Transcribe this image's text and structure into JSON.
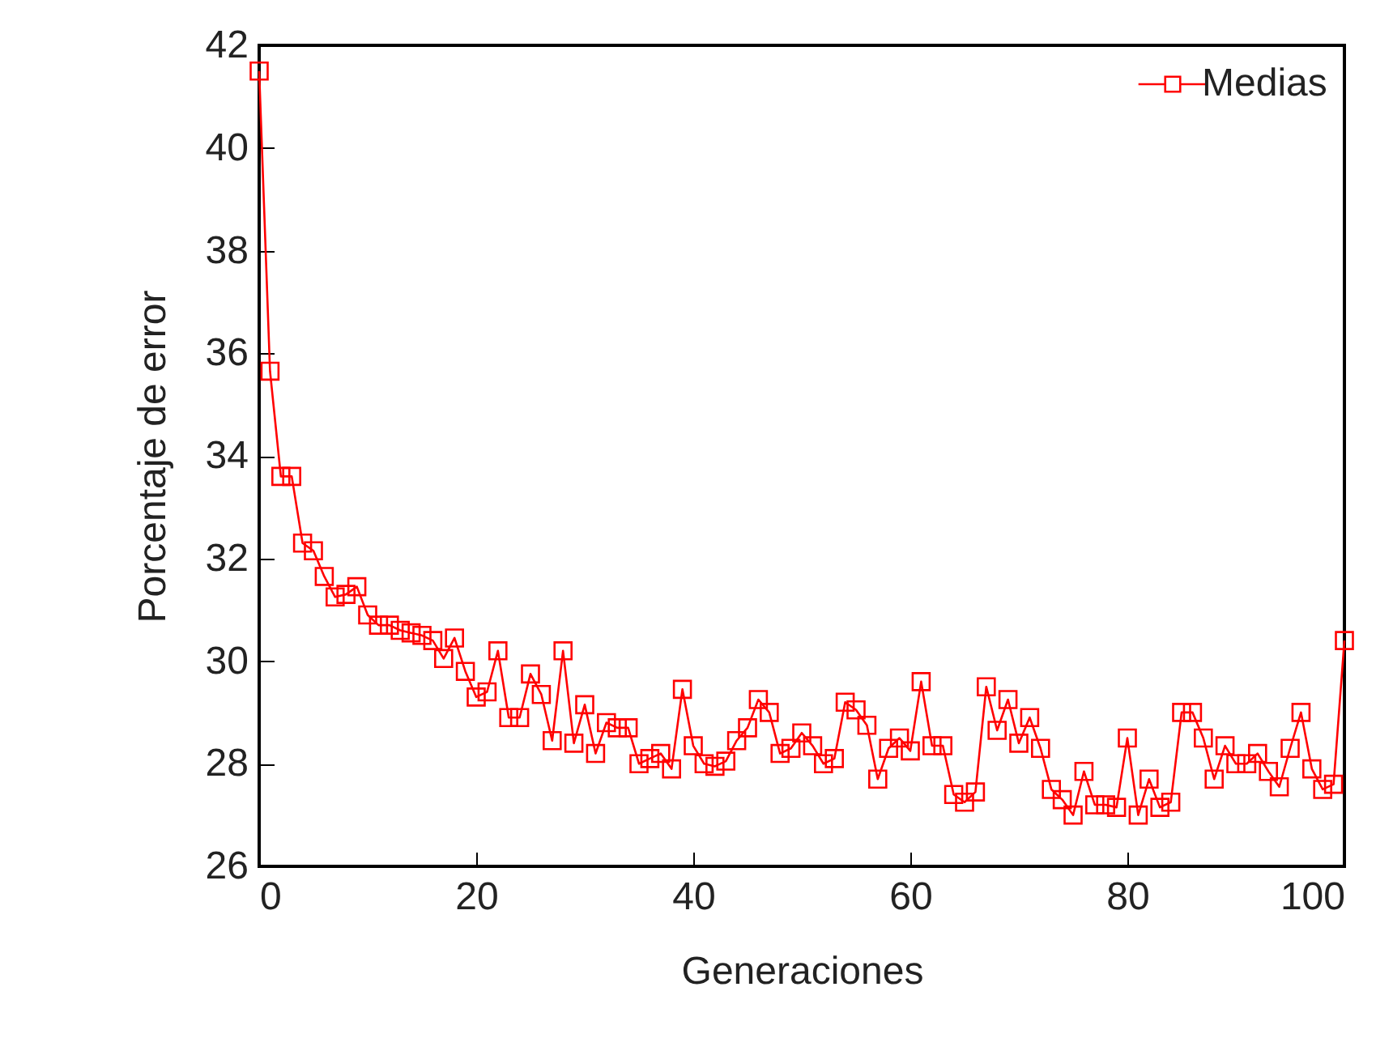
{
  "chart_data": {
    "type": "line",
    "xlabel": "Generaciones",
    "ylabel": "Porcentaje de error",
    "x": [
      0,
      1,
      2,
      3,
      4,
      5,
      6,
      7,
      8,
      9,
      10,
      11,
      12,
      13,
      14,
      15,
      16,
      17,
      18,
      19,
      20,
      21,
      22,
      23,
      24,
      25,
      26,
      27,
      28,
      29,
      30,
      31,
      32,
      33,
      34,
      35,
      36,
      37,
      38,
      39,
      40,
      41,
      42,
      43,
      44,
      45,
      46,
      47,
      48,
      49,
      50,
      51,
      52,
      53,
      54,
      55,
      56,
      57,
      58,
      59,
      60,
      61,
      62,
      63,
      64,
      65,
      66,
      67,
      68,
      69,
      70,
      71,
      72,
      73,
      74,
      75,
      76,
      77,
      78,
      79,
      80,
      81,
      82,
      83,
      84,
      85,
      86,
      87,
      88,
      89,
      90,
      91,
      92,
      93,
      94,
      95,
      96,
      97,
      98,
      99,
      100
    ],
    "series": [
      {
        "name": "Medias",
        "color": "#ff0000",
        "values": [
          41.5,
          35.65,
          33.6,
          33.6,
          32.3,
          32.15,
          31.65,
          31.25,
          31.3,
          31.45,
          30.9,
          30.7,
          30.7,
          30.6,
          30.55,
          30.5,
          30.4,
          30.05,
          30.45,
          29.8,
          29.3,
          29.4,
          30.2,
          28.9,
          28.9,
          29.75,
          29.35,
          28.45,
          30.2,
          28.4,
          29.15,
          28.2,
          28.8,
          28.7,
          28.7,
          28.0,
          28.1,
          28.2,
          27.9,
          29.45,
          28.35,
          28.0,
          27.95,
          28.05,
          28.45,
          28.7,
          29.25,
          29.0,
          28.2,
          28.3,
          28.6,
          28.35,
          28.0,
          28.1,
          29.2,
          29.05,
          28.75,
          27.7,
          28.3,
          28.5,
          28.25,
          29.6,
          28.35,
          28.35,
          27.4,
          27.25,
          27.45,
          29.5,
          28.65,
          29.25,
          28.4,
          28.9,
          28.3,
          27.5,
          27.3,
          27.0,
          27.85,
          27.2,
          27.2,
          27.15,
          28.5,
          27.0,
          27.7,
          27.15,
          27.25,
          29.0,
          29.0,
          28.5,
          27.7,
          28.35,
          28.0,
          28.0,
          28.2,
          27.85,
          27.55,
          28.3,
          29.0,
          27.9,
          27.5,
          27.6,
          30.4
        ]
      }
    ],
    "xlim": [
      0,
      100
    ],
    "xticks": [
      0,
      20,
      40,
      60,
      80,
      100
    ],
    "ylim": [
      26,
      42
    ],
    "yticks": [
      26,
      28,
      30,
      32,
      34,
      36,
      38,
      40,
      42
    ],
    "grid": false,
    "legend": "top right",
    "marker": "square",
    "line_style": "solid"
  }
}
